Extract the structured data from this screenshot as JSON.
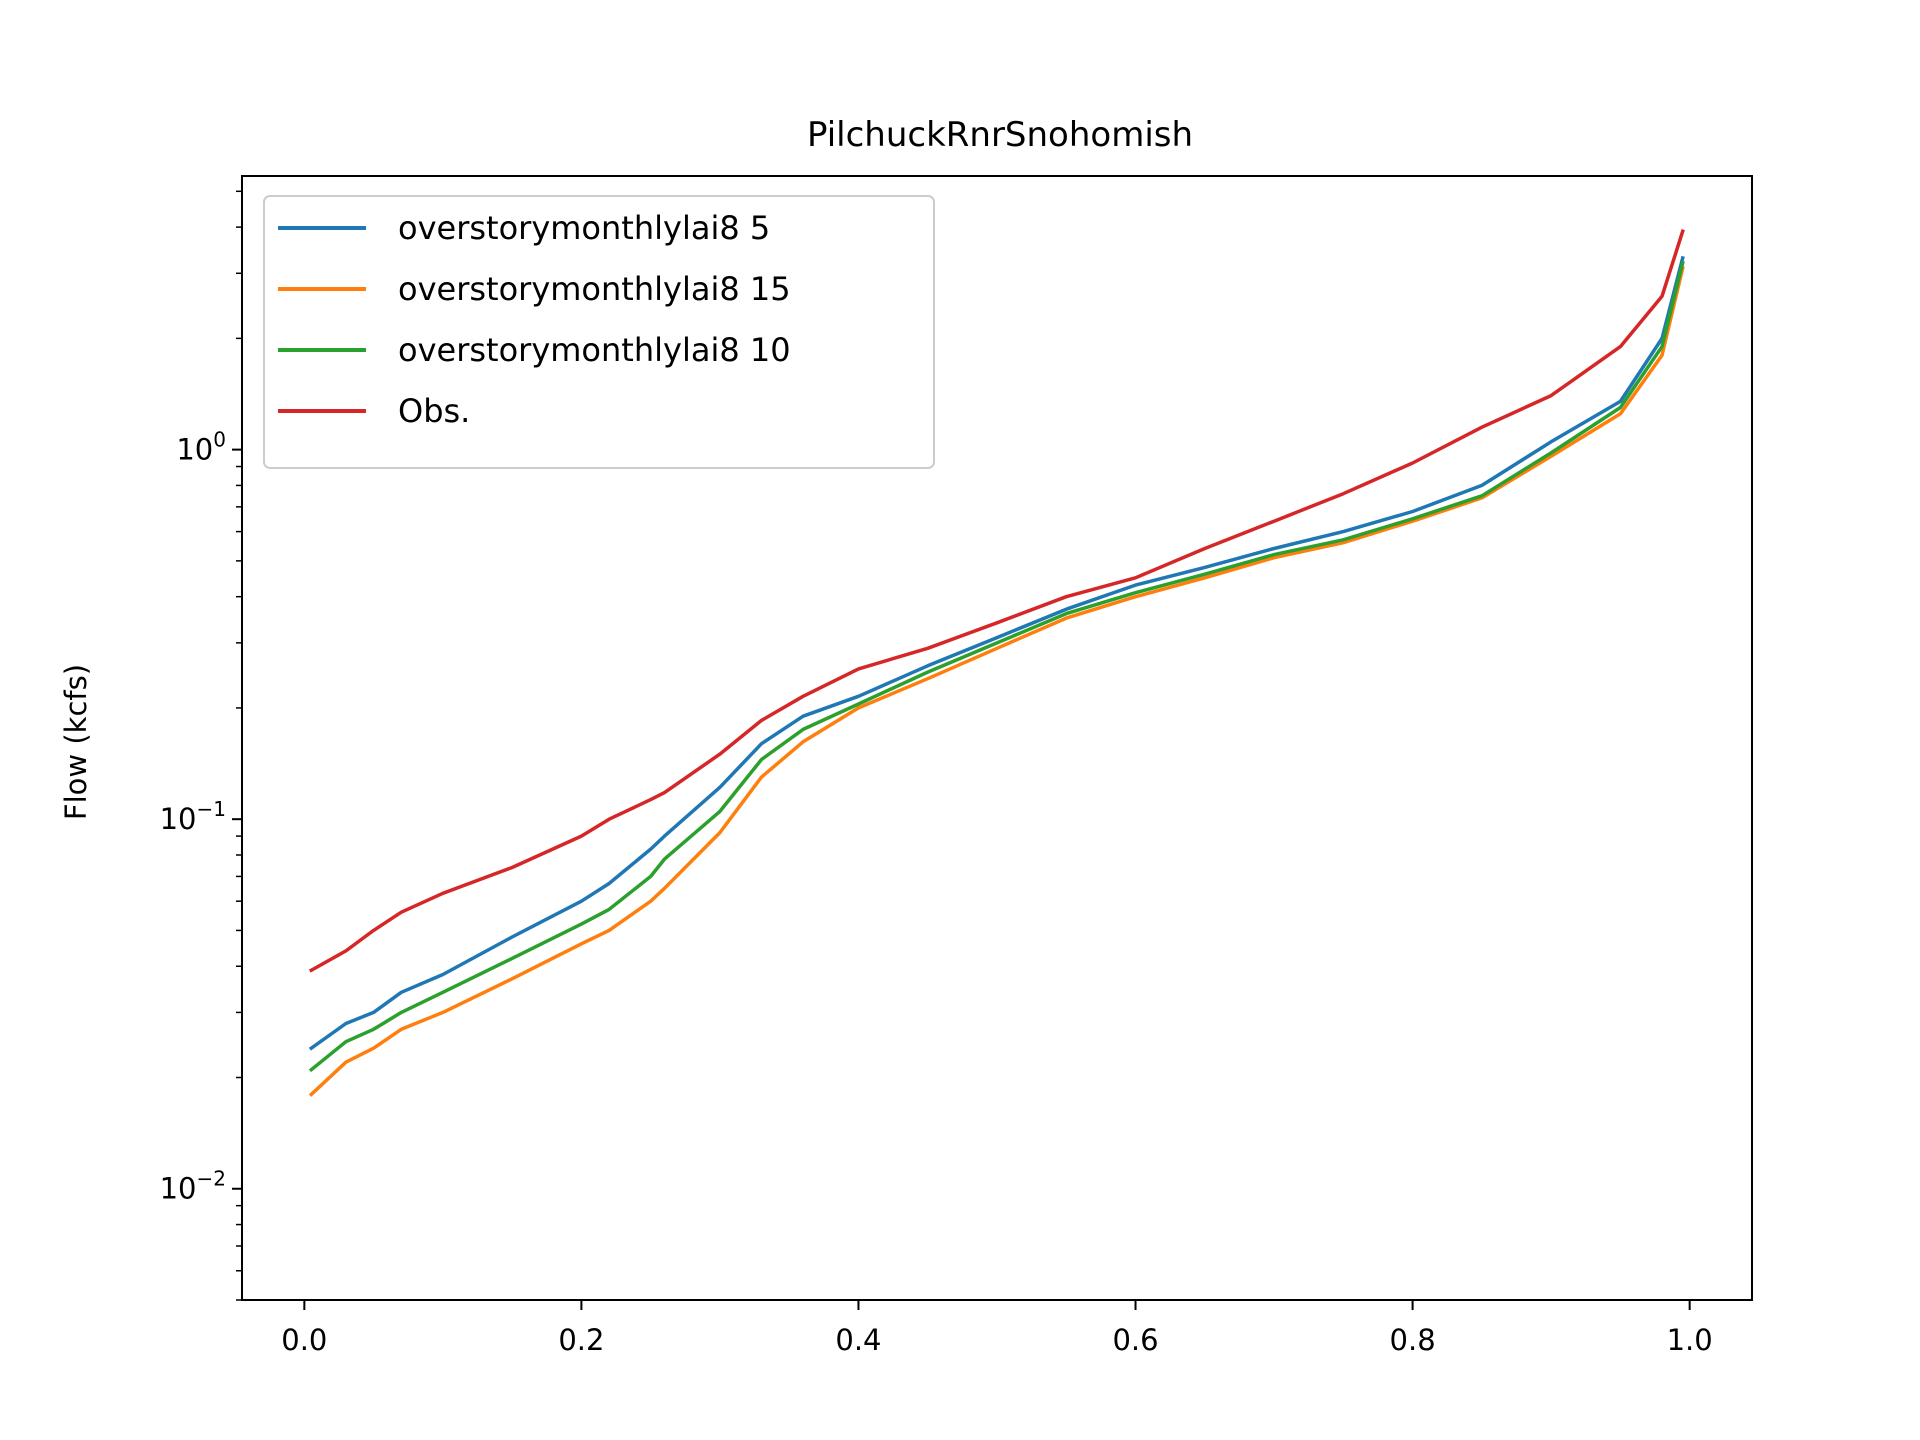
{
  "chart_data": {
    "type": "line",
    "title": "PilchuckRnrSnohomish",
    "xlabel": "",
    "ylabel": "Flow (kcfs)",
    "xlim": [
      -0.045,
      1.045
    ],
    "ylim": [
      0.005,
      5.5
    ],
    "yscale": "log",
    "grid": false,
    "legend_position": "top-left",
    "x_ticks": [
      {
        "value": 0.0,
        "label": "0.0"
      },
      {
        "value": 0.2,
        "label": "0.2"
      },
      {
        "value": 0.4,
        "label": "0.4"
      },
      {
        "value": 0.6,
        "label": "0.6"
      },
      {
        "value": 0.8,
        "label": "0.8"
      },
      {
        "value": 1.0,
        "label": "1.0"
      }
    ],
    "y_ticks": [
      {
        "value": 0.01,
        "base": "10",
        "exp": "−2"
      },
      {
        "value": 0.1,
        "base": "10",
        "exp": "−1"
      },
      {
        "value": 1,
        "base": "10",
        "exp": "0"
      }
    ],
    "series": [
      {
        "name": "overstorymonthlylai8 5",
        "color": "#1f77b4",
        "x": [
          0.005,
          0.03,
          0.05,
          0.07,
          0.1,
          0.15,
          0.2,
          0.22,
          0.25,
          0.26,
          0.3,
          0.33,
          0.36,
          0.4,
          0.45,
          0.5,
          0.55,
          0.6,
          0.65,
          0.7,
          0.75,
          0.8,
          0.85,
          0.9,
          0.95,
          0.98,
          0.995
        ],
        "y": [
          0.024,
          0.028,
          0.03,
          0.034,
          0.038,
          0.048,
          0.06,
          0.067,
          0.083,
          0.09,
          0.122,
          0.16,
          0.19,
          0.215,
          0.26,
          0.31,
          0.37,
          0.43,
          0.48,
          0.54,
          0.6,
          0.68,
          0.8,
          1.05,
          1.35,
          2.0,
          3.3
        ]
      },
      {
        "name": "overstorymonthlylai8 15",
        "color": "#ff7f0e",
        "x": [
          0.005,
          0.03,
          0.05,
          0.07,
          0.1,
          0.15,
          0.2,
          0.22,
          0.25,
          0.26,
          0.3,
          0.33,
          0.36,
          0.4,
          0.45,
          0.5,
          0.55,
          0.6,
          0.65,
          0.7,
          0.75,
          0.8,
          0.85,
          0.9,
          0.95,
          0.98,
          0.995
        ],
        "y": [
          0.018,
          0.022,
          0.024,
          0.027,
          0.03,
          0.037,
          0.046,
          0.05,
          0.06,
          0.065,
          0.092,
          0.13,
          0.162,
          0.2,
          0.24,
          0.29,
          0.35,
          0.4,
          0.45,
          0.51,
          0.56,
          0.64,
          0.74,
          0.96,
          1.25,
          1.8,
          3.1
        ]
      },
      {
        "name": "overstorymonthlylai8 10",
        "color": "#2ca02c",
        "x": [
          0.005,
          0.03,
          0.05,
          0.07,
          0.1,
          0.15,
          0.2,
          0.22,
          0.25,
          0.26,
          0.3,
          0.33,
          0.36,
          0.4,
          0.45,
          0.5,
          0.55,
          0.6,
          0.65,
          0.7,
          0.75,
          0.8,
          0.85,
          0.9,
          0.95,
          0.98,
          0.995
        ],
        "y": [
          0.021,
          0.025,
          0.027,
          0.03,
          0.034,
          0.042,
          0.052,
          0.057,
          0.07,
          0.078,
          0.105,
          0.145,
          0.175,
          0.205,
          0.25,
          0.3,
          0.36,
          0.41,
          0.46,
          0.52,
          0.57,
          0.65,
          0.75,
          0.98,
          1.3,
          1.9,
          3.2
        ]
      },
      {
        "name": "Obs.",
        "color": "#d62728",
        "x": [
          0.005,
          0.03,
          0.05,
          0.07,
          0.1,
          0.15,
          0.2,
          0.22,
          0.25,
          0.26,
          0.3,
          0.33,
          0.36,
          0.4,
          0.45,
          0.5,
          0.55,
          0.6,
          0.65,
          0.7,
          0.75,
          0.8,
          0.85,
          0.9,
          0.95,
          0.98,
          0.995
        ],
        "y": [
          0.039,
          0.044,
          0.05,
          0.056,
          0.063,
          0.074,
          0.09,
          0.1,
          0.113,
          0.118,
          0.15,
          0.185,
          0.215,
          0.255,
          0.29,
          0.34,
          0.4,
          0.45,
          0.54,
          0.64,
          0.76,
          0.92,
          1.15,
          1.4,
          1.9,
          2.6,
          3.9
        ]
      }
    ]
  }
}
